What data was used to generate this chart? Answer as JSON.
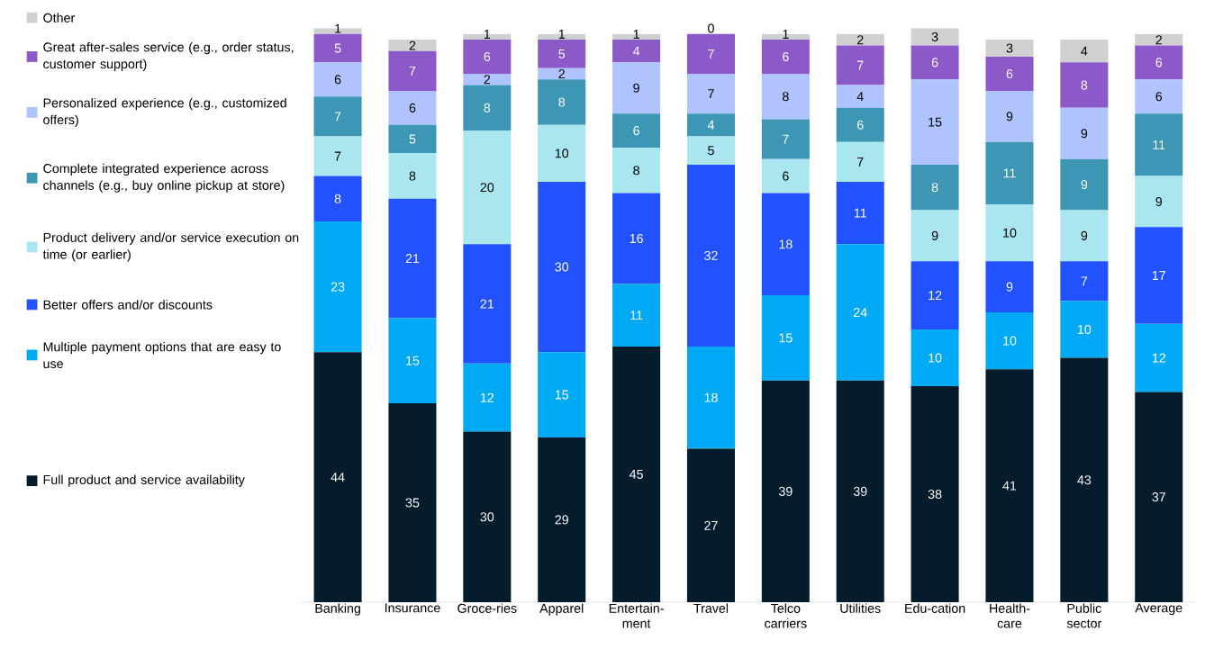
{
  "chart_data": {
    "type": "bar",
    "stacked": true,
    "data_labels": true,
    "legend": "left",
    "categories": [
      "Banking",
      "Insurance",
      "Groce-ries",
      "Apparel",
      "Entertain-ment",
      "Travel",
      "Telco carriers",
      "Utilities",
      "Edu-cation",
      "Health-care",
      "Public sector",
      "Average"
    ],
    "series": [
      {
        "name": "Full product and service availability",
        "color": "#051c2c",
        "values": [
          44,
          35,
          30,
          29,
          45,
          27,
          39,
          39,
          38,
          41,
          43,
          37
        ]
      },
      {
        "name": "Multiple payment options that are easy to use",
        "color": "#00a9f4",
        "values": [
          23,
          15,
          12,
          15,
          11,
          18,
          15,
          24,
          10,
          10,
          10,
          12
        ]
      },
      {
        "name": "Better offers and/or discounts",
        "color": "#2251ff",
        "values": [
          8,
          21,
          21,
          30,
          16,
          32,
          18,
          11,
          12,
          9,
          7,
          17
        ]
      },
      {
        "name": "Product delivery and/or service execution on time (or earlier)",
        "color": "#aae6f0",
        "values": [
          7,
          8,
          20,
          10,
          8,
          5,
          6,
          7,
          9,
          10,
          9,
          9
        ]
      },
      {
        "name": "Complete integrated experience across channels (e.g., buy online pickup at store)",
        "color": "#3c96b4",
        "values": [
          7,
          5,
          8,
          8,
          6,
          4,
          7,
          6,
          8,
          11,
          9,
          11
        ]
      },
      {
        "name": "Personalized experience (e.g., customized offers)",
        "color": "#afc3ff",
        "values": [
          6,
          6,
          2,
          2,
          9,
          7,
          8,
          4,
          15,
          9,
          9,
          6
        ]
      },
      {
        "name": "Great after-sales service (e.g., order status, customer support)",
        "color": "#8c5ac8",
        "values": [
          5,
          7,
          6,
          5,
          4,
          7,
          6,
          7,
          6,
          6,
          8,
          6
        ]
      },
      {
        "name": "Other",
        "color": "#d0d0d0",
        "values": [
          1,
          2,
          1,
          1,
          1,
          0,
          1,
          2,
          3,
          3,
          4,
          2
        ]
      }
    ]
  }
}
